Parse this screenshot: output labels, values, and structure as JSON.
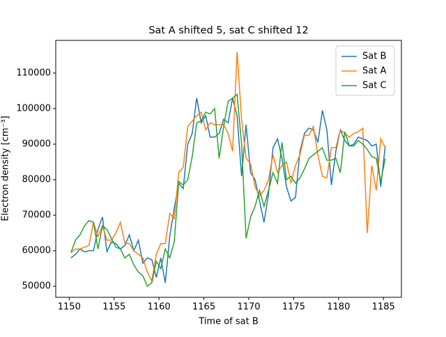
{
  "chart_data": {
    "type": "line",
    "title": "Sat A shifted 5, sat C shifted 12",
    "x_label": "Time of sat B",
    "y_label": "Electron density [cm⁻³]",
    "x": [
      1150.2,
      1150.7,
      1151.2,
      1151.7,
      1152.2,
      1152.7,
      1153.2,
      1153.7,
      1154.2,
      1154.7,
      1155.2,
      1155.7,
      1156.2,
      1156.7,
      1157.2,
      1157.7,
      1158.2,
      1158.7,
      1159.2,
      1159.7,
      1160.2,
      1160.7,
      1161.2,
      1161.7,
      1162.2,
      1162.7,
      1163.2,
      1163.7,
      1164.2,
      1164.7,
      1165.2,
      1165.7,
      1166.2,
      1166.7,
      1167.2,
      1167.7,
      1168.2,
      1168.7,
      1169.2,
      1169.7,
      1170.2,
      1170.7,
      1171.2,
      1171.7,
      1172.2,
      1172.7,
      1173.2,
      1173.7,
      1174.2,
      1174.7,
      1175.2,
      1175.7,
      1176.2,
      1176.7,
      1177.2,
      1177.7,
      1178.2,
      1178.7,
      1179.2,
      1179.7,
      1180.2,
      1180.7,
      1181.2,
      1181.7,
      1182.2,
      1182.7,
      1183.2,
      1183.7,
      1184.2,
      1184.7,
      1185.2
    ],
    "series": [
      {
        "name": "Sat B",
        "color": "#1f77b4",
        "values": [
          58000,
          59000,
          60500,
          59700,
          60000,
          60000,
          66000,
          69500,
          59800,
          62500,
          62000,
          60500,
          61500,
          64500,
          60000,
          63000,
          56500,
          58000,
          57500,
          52500,
          58000,
          51000,
          64000,
          72000,
          79000,
          77500,
          90000,
          93000,
          103000,
          96000,
          98000,
          92000,
          92000,
          93000,
          97000,
          96000,
          103000,
          98000,
          81000,
          95500,
          82000,
          80000,
          74000,
          68000,
          76000,
          89000,
          91500,
          86000,
          78000,
          74000,
          75000,
          88000,
          93000,
          94500,
          94000,
          90500,
          99500,
          94000,
          78500,
          88000,
          94000,
          91000,
          89500,
          90000,
          92000,
          91500,
          91000,
          89500,
          90000,
          78000,
          89500
        ]
      },
      {
        "name": "Sat A",
        "color": "#ff7f0e",
        "values": [
          59500,
          60500,
          60500,
          61000,
          61500,
          68000,
          64000,
          67000,
          63000,
          63000,
          65000,
          68000,
          62000,
          62000,
          60000,
          59000,
          58000,
          54000,
          51500,
          59000,
          62000,
          62000,
          70500,
          69000,
          82000,
          83500,
          95000,
          96500,
          98000,
          99000,
          94000,
          96000,
          95500,
          95500,
          95500,
          93000,
          88000,
          116000,
          97000,
          86000,
          84500,
          78000,
          75500,
          77000,
          80000,
          87000,
          82000,
          84000,
          85000,
          79000,
          84000,
          87000,
          92500,
          92500,
          95000,
          87000,
          81000,
          80500,
          89000,
          89000,
          94000,
          93000,
          92000,
          93000,
          93500,
          94500,
          65000,
          84000,
          77000,
          91500,
          89000
        ]
      },
      {
        "name": "Sat C",
        "color": "#2ca02c",
        "values": [
          59500,
          63000,
          64500,
          67000,
          68500,
          68000,
          60500,
          67000,
          66000,
          63500,
          61000,
          60500,
          58000,
          59000,
          56000,
          54000,
          53000,
          50000,
          51000,
          57000,
          55000,
          60500,
          58000,
          62500,
          79500,
          78500,
          80000,
          86500,
          96000,
          96500,
          99000,
          98500,
          100000,
          86000,
          95000,
          102000,
          103000,
          104000,
          90000,
          63500,
          69500,
          72500,
          77000,
          72500,
          77000,
          82000,
          79000,
          90500,
          80000,
          81000,
          79000,
          80500,
          83000,
          86000,
          87000,
          88000,
          89000,
          85500,
          85500,
          86000,
          82000,
          93500,
          89500,
          89500,
          91000,
          90000,
          88500,
          86500,
          86000,
          79500,
          86000
        ]
      }
    ],
    "xlim": [
      1148.5,
      1187.0
    ],
    "ylim": [
      46900,
      119200
    ],
    "xticks": [
      1150,
      1155,
      1160,
      1165,
      1170,
      1175,
      1180,
      1185
    ],
    "yticks": [
      50000,
      60000,
      70000,
      80000,
      90000,
      100000,
      110000
    ],
    "legend": "upper right",
    "grid": false
  }
}
